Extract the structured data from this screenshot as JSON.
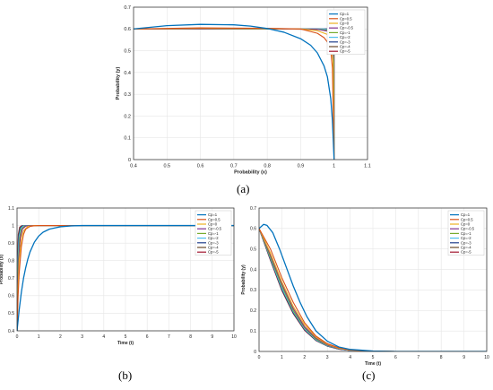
{
  "palette": [
    "#0072BD",
    "#D95319",
    "#EDB120",
    "#7E2F8E",
    "#77AC30",
    "#4DBEEE",
    "#1F3D8A",
    "#6B4A2A",
    "#A2142F"
  ],
  "captions": [
    "(a)",
    "(b)",
    "(c)"
  ],
  "chart_data": [
    {
      "type": "line",
      "xlabel": "Probability (x)",
      "ylabel": "Probability (y)",
      "xlim": [
        0.4,
        1.1
      ],
      "ylim": [
        0,
        0.7
      ],
      "xticks": [
        "0.4",
        "0.5",
        "0.6",
        "0.7",
        "0.8",
        "0.9",
        "1",
        "1.1"
      ],
      "yticks": [
        "0",
        "0.1",
        "0.2",
        "0.3",
        "0.4",
        "0.5",
        "0.6",
        "0.7"
      ],
      "grid": true,
      "legend_position": "top-right",
      "series": [
        {
          "name": "Cp=1",
          "x": [
            0.4,
            0.5,
            0.6,
            0.7,
            0.75,
            0.8,
            0.85,
            0.9,
            0.93,
            0.95,
            0.97,
            0.98,
            0.99,
            0.995,
            1.0
          ],
          "y": [
            0.6,
            0.615,
            0.621,
            0.619,
            0.613,
            0.602,
            0.585,
            0.555,
            0.525,
            0.49,
            0.43,
            0.38,
            0.28,
            0.18,
            0.0
          ]
        },
        {
          "name": "Cp=0.5",
          "x": [
            0.4,
            0.6,
            0.8,
            0.9,
            0.95,
            0.97,
            0.98,
            0.99,
            0.995,
            1.0
          ],
          "y": [
            0.6,
            0.605,
            0.603,
            0.6,
            0.58,
            0.56,
            0.54,
            0.5,
            0.42,
            0.0
          ]
        },
        {
          "name": "Cp=0",
          "x": [
            0.4,
            0.6,
            0.8,
            0.9,
            0.95,
            0.98,
            0.99,
            0.997,
            1.0
          ],
          "y": [
            0.6,
            0.603,
            0.602,
            0.6,
            0.592,
            0.575,
            0.55,
            0.45,
            0.0
          ]
        },
        {
          "name": "Cp=-0.5",
          "x": [
            0.4,
            0.8,
            0.95,
            0.98,
            0.99,
            0.997,
            1.0
          ],
          "y": [
            0.6,
            0.601,
            0.598,
            0.59,
            0.575,
            0.5,
            0.0
          ]
        },
        {
          "name": "Cp=-1",
          "x": [
            0.4,
            0.8,
            0.95,
            0.99,
            0.996,
            0.999,
            1.0
          ],
          "y": [
            0.6,
            0.6,
            0.599,
            0.592,
            0.57,
            0.45,
            0.0
          ]
        },
        {
          "name": "Cp=-2",
          "x": [
            0.4,
            0.8,
            0.97,
            0.995,
            0.999,
            1.0
          ],
          "y": [
            0.6,
            0.6,
            0.6,
            0.59,
            0.52,
            0.0
          ]
        },
        {
          "name": "Cp=-3",
          "x": [
            0.4,
            0.8,
            0.98,
            0.997,
            0.9995,
            1.0
          ],
          "y": [
            0.6,
            0.6,
            0.6,
            0.59,
            0.5,
            0.0
          ]
        },
        {
          "name": "Cp=-4",
          "x": [
            0.4,
            0.8,
            0.99,
            0.998,
            0.9997,
            1.0
          ],
          "y": [
            0.6,
            0.6,
            0.6,
            0.595,
            0.52,
            0.0
          ]
        },
        {
          "name": "Cp=-5",
          "x": [
            0.4,
            0.8,
            0.99,
            0.999,
            0.9998,
            1.0
          ],
          "y": [
            0.6,
            0.6,
            0.6,
            0.597,
            0.55,
            0.0
          ]
        }
      ]
    },
    {
      "type": "line",
      "xlabel": "Time (t)",
      "ylabel": "Probability (x)",
      "xlim": [
        0,
        10
      ],
      "ylim": [
        0.4,
        1.1
      ],
      "xticks": [
        "0",
        "1",
        "2",
        "3",
        "4",
        "5",
        "6",
        "7",
        "8",
        "9",
        "10"
      ],
      "yticks": [
        "0.4",
        "0.5",
        "0.6",
        "0.7",
        "0.8",
        "0.9",
        "1",
        "1.1"
      ],
      "grid": true,
      "legend_position": "top-right",
      "series": [
        {
          "name": "Cp=1",
          "x": [
            0,
            0.1,
            0.2,
            0.3,
            0.4,
            0.5,
            0.6,
            0.8,
            1.0,
            1.2,
            1.5,
            2.0,
            2.5,
            3.0,
            10
          ],
          "y": [
            0.4,
            0.52,
            0.62,
            0.7,
            0.76,
            0.81,
            0.85,
            0.905,
            0.94,
            0.962,
            0.98,
            0.993,
            0.998,
            1.0,
            1.0
          ]
        },
        {
          "name": "Cp=0.5",
          "x": [
            0,
            0.05,
            0.1,
            0.2,
            0.3,
            0.4,
            0.6,
            0.8,
            1.0,
            10
          ],
          "y": [
            0.4,
            0.6,
            0.73,
            0.88,
            0.95,
            0.98,
            0.995,
            0.999,
            1.0,
            1.0
          ]
        },
        {
          "name": "Cp=0",
          "x": [
            0,
            0.05,
            0.1,
            0.2,
            0.3,
            0.5,
            0.8,
            10
          ],
          "y": [
            0.4,
            0.66,
            0.8,
            0.93,
            0.97,
            0.995,
            1.0,
            1.0
          ]
        },
        {
          "name": "Cp=-0.5",
          "x": [
            0,
            0.04,
            0.08,
            0.15,
            0.25,
            0.4,
            0.7,
            10
          ],
          "y": [
            0.4,
            0.66,
            0.81,
            0.93,
            0.98,
            0.997,
            1.0,
            1.0
          ]
        },
        {
          "name": "Cp=-1",
          "x": [
            0,
            0.03,
            0.06,
            0.12,
            0.2,
            0.35,
            0.6,
            10
          ],
          "y": [
            0.4,
            0.65,
            0.8,
            0.93,
            0.98,
            0.997,
            1.0,
            1.0
          ]
        },
        {
          "name": "Cp=-2",
          "x": [
            0,
            0.02,
            0.05,
            0.1,
            0.18,
            0.3,
            0.5,
            10
          ],
          "y": [
            0.4,
            0.64,
            0.82,
            0.94,
            0.985,
            0.998,
            1.0,
            1.0
          ]
        },
        {
          "name": "Cp=-3",
          "x": [
            0,
            0.02,
            0.04,
            0.08,
            0.15,
            0.25,
            0.45,
            10
          ],
          "y": [
            0.4,
            0.68,
            0.82,
            0.94,
            0.985,
            0.998,
            1.0,
            1.0
          ]
        },
        {
          "name": "Cp=-4",
          "x": [
            0,
            0.015,
            0.035,
            0.07,
            0.13,
            0.22,
            0.4,
            10
          ],
          "y": [
            0.4,
            0.67,
            0.83,
            0.95,
            0.988,
            0.998,
            1.0,
            1.0
          ]
        },
        {
          "name": "Cp=-5",
          "x": [
            0,
            0.01,
            0.03,
            0.06,
            0.12,
            0.2,
            0.35,
            10
          ],
          "y": [
            0.4,
            0.64,
            0.84,
            0.95,
            0.99,
            0.998,
            1.0,
            1.0
          ]
        }
      ]
    },
    {
      "type": "line",
      "xlabel": "Time (t)",
      "ylabel": "Probability (y)",
      "xlim": [
        0,
        10
      ],
      "ylim": [
        0,
        0.7
      ],
      "xticks": [
        "0",
        "1",
        "2",
        "3",
        "4",
        "5",
        "6",
        "7",
        "8",
        "9",
        "10"
      ],
      "yticks": [
        "0",
        "0.1",
        "0.2",
        "0.3",
        "0.4",
        "0.5",
        "0.6",
        "0.7"
      ],
      "grid": true,
      "legend_position": "top-right",
      "series": [
        {
          "name": "Cp=1",
          "x": [
            0,
            0.2,
            0.35,
            0.6,
            0.9,
            1.2,
            1.5,
            1.8,
            2.1,
            2.5,
            3.0,
            3.5,
            4.0,
            5.0,
            6.0,
            10
          ],
          "y": [
            0.6,
            0.62,
            0.615,
            0.58,
            0.5,
            0.41,
            0.32,
            0.24,
            0.17,
            0.1,
            0.05,
            0.022,
            0.01,
            0.002,
            0.0,
            0.0
          ]
        },
        {
          "name": "Cp=0.5",
          "x": [
            0,
            0.5,
            1.0,
            1.5,
            2.0,
            2.5,
            3.0,
            3.5,
            4.0,
            5.0,
            6.0,
            10
          ],
          "y": [
            0.6,
            0.5,
            0.36,
            0.24,
            0.14,
            0.075,
            0.038,
            0.018,
            0.008,
            0.001,
            0.0,
            0.0
          ]
        },
        {
          "name": "Cp=0",
          "x": [
            0,
            0.5,
            1.0,
            1.5,
            2.0,
            2.5,
            3.0,
            3.5,
            4.0,
            5.0,
            6.0,
            10
          ],
          "y": [
            0.6,
            0.48,
            0.34,
            0.22,
            0.13,
            0.07,
            0.035,
            0.016,
            0.007,
            0.001,
            0.0,
            0.0
          ]
        },
        {
          "name": "Cp=-0.5",
          "x": [
            0,
            0.5,
            1.0,
            1.5,
            2.0,
            2.5,
            3.0,
            3.5,
            4.0,
            5.0,
            6.0,
            10
          ],
          "y": [
            0.6,
            0.47,
            0.33,
            0.21,
            0.12,
            0.065,
            0.032,
            0.015,
            0.006,
            0.001,
            0.0,
            0.0
          ]
        },
        {
          "name": "Cp=-1",
          "x": [
            0,
            0.5,
            1.0,
            1.5,
            2.0,
            2.5,
            3.0,
            3.5,
            4.0,
            5.0,
            6.0,
            10
          ],
          "y": [
            0.6,
            0.46,
            0.32,
            0.2,
            0.115,
            0.06,
            0.03,
            0.014,
            0.006,
            0.001,
            0.0,
            0.0
          ]
        },
        {
          "name": "Cp=-2",
          "x": [
            0,
            0.5,
            1.0,
            1.5,
            2.0,
            2.5,
            3.0,
            3.5,
            4.0,
            5.0,
            6.0,
            10
          ],
          "y": [
            0.6,
            0.455,
            0.31,
            0.195,
            0.11,
            0.057,
            0.028,
            0.013,
            0.005,
            0.001,
            0.0,
            0.0
          ]
        },
        {
          "name": "Cp=-3",
          "x": [
            0,
            0.5,
            1.0,
            1.5,
            2.0,
            2.5,
            3.0,
            3.5,
            4.0,
            5.0,
            6.0,
            10
          ],
          "y": [
            0.6,
            0.45,
            0.305,
            0.19,
            0.107,
            0.055,
            0.027,
            0.012,
            0.005,
            0.001,
            0.0,
            0.0
          ]
        },
        {
          "name": "Cp=-4",
          "x": [
            0,
            0.5,
            1.0,
            1.5,
            2.0,
            2.5,
            3.0,
            3.5,
            4.0,
            5.0,
            6.0,
            10
          ],
          "y": [
            0.6,
            0.448,
            0.3,
            0.187,
            0.105,
            0.054,
            0.026,
            0.012,
            0.005,
            0.001,
            0.0,
            0.0
          ]
        },
        {
          "name": "Cp=-5",
          "x": [
            0,
            0.5,
            1.0,
            1.5,
            2.0,
            2.5,
            3.0,
            3.5,
            4.0,
            5.0,
            6.0,
            10
          ],
          "y": [
            0.6,
            0.445,
            0.298,
            0.185,
            0.103,
            0.053,
            0.026,
            0.011,
            0.005,
            0.001,
            0.0,
            0.0
          ]
        }
      ]
    }
  ]
}
